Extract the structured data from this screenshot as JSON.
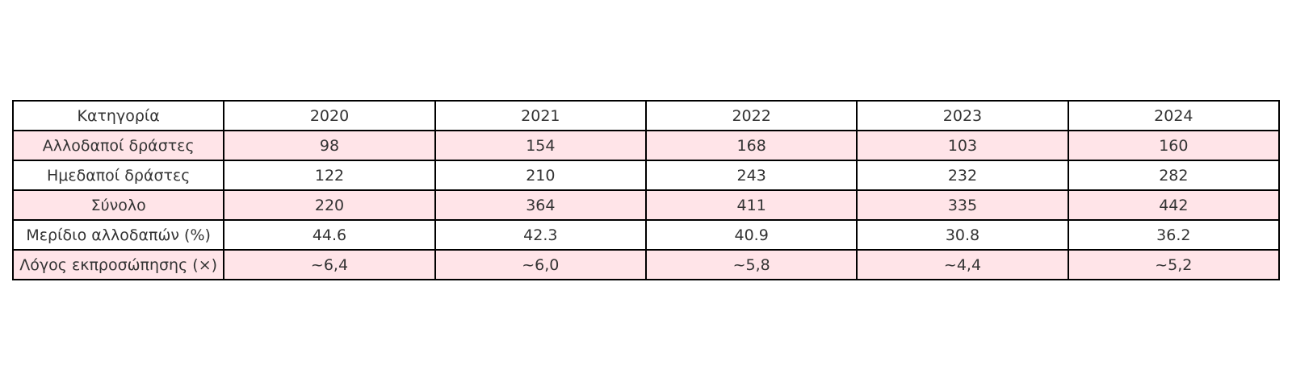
{
  "chart_data": {
    "type": "table",
    "columns": [
      "Κατηγορία",
      "2020",
      "2021",
      "2022",
      "2023",
      "2024"
    ],
    "rows": [
      [
        "Αλλοδαποί δράστες",
        "98",
        "154",
        "168",
        "103",
        "160"
      ],
      [
        "Ημεδαποί δράστες",
        "122",
        "210",
        "243",
        "232",
        "282"
      ],
      [
        "Σύνολο",
        "220",
        "364",
        "411",
        "335",
        "442"
      ],
      [
        "Μερίδιο αλλοδαπών (%)",
        "44.6",
        "42.3",
        "40.9",
        "30.8",
        "36.2"
      ],
      [
        "Λόγος εκπροσώπησης (×)",
        "~6,4",
        "~6,0",
        "~5,8",
        "~4,4",
        "~5,2"
      ]
    ],
    "row_shading": "alternating",
    "colors": {
      "shaded_row": "#ffe4e8",
      "plain_row": "#ffffff",
      "border": "#000000",
      "text": "#333333"
    }
  }
}
